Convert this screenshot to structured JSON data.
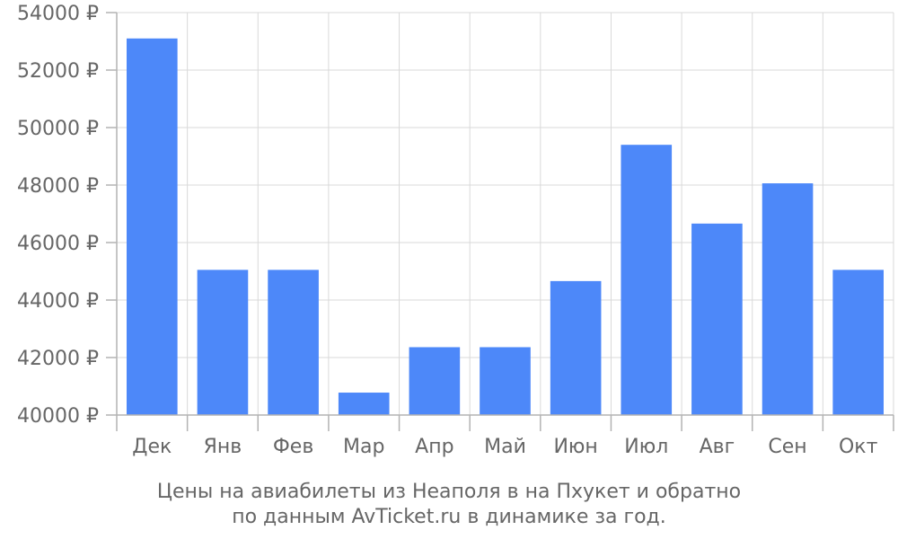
{
  "chart_data": {
    "type": "bar",
    "categories": [
      "Дек",
      "Янв",
      "Фев",
      "Мар",
      "Апр",
      "Май",
      "Июн",
      "Июл",
      "Авг",
      "Сен",
      "Окт"
    ],
    "values": [
      53100,
      45050,
      45050,
      40780,
      42360,
      42360,
      44660,
      49400,
      46660,
      48060,
      45050
    ],
    "ylim": [
      40000,
      54000
    ],
    "y_ticks": [
      "40000 ₽",
      "42000 ₽",
      "44000 ₽",
      "46000 ₽",
      "48000 ₽",
      "50000 ₽",
      "52000 ₽",
      "54000 ₽"
    ],
    "bar_color": "#4d88f9",
    "grid": true,
    "caption_line1": "Цены на авиабилеты из Неаполя в на Пхукет и обратно",
    "caption_line2": "по данным AvTicket.ru в динамике за год."
  }
}
